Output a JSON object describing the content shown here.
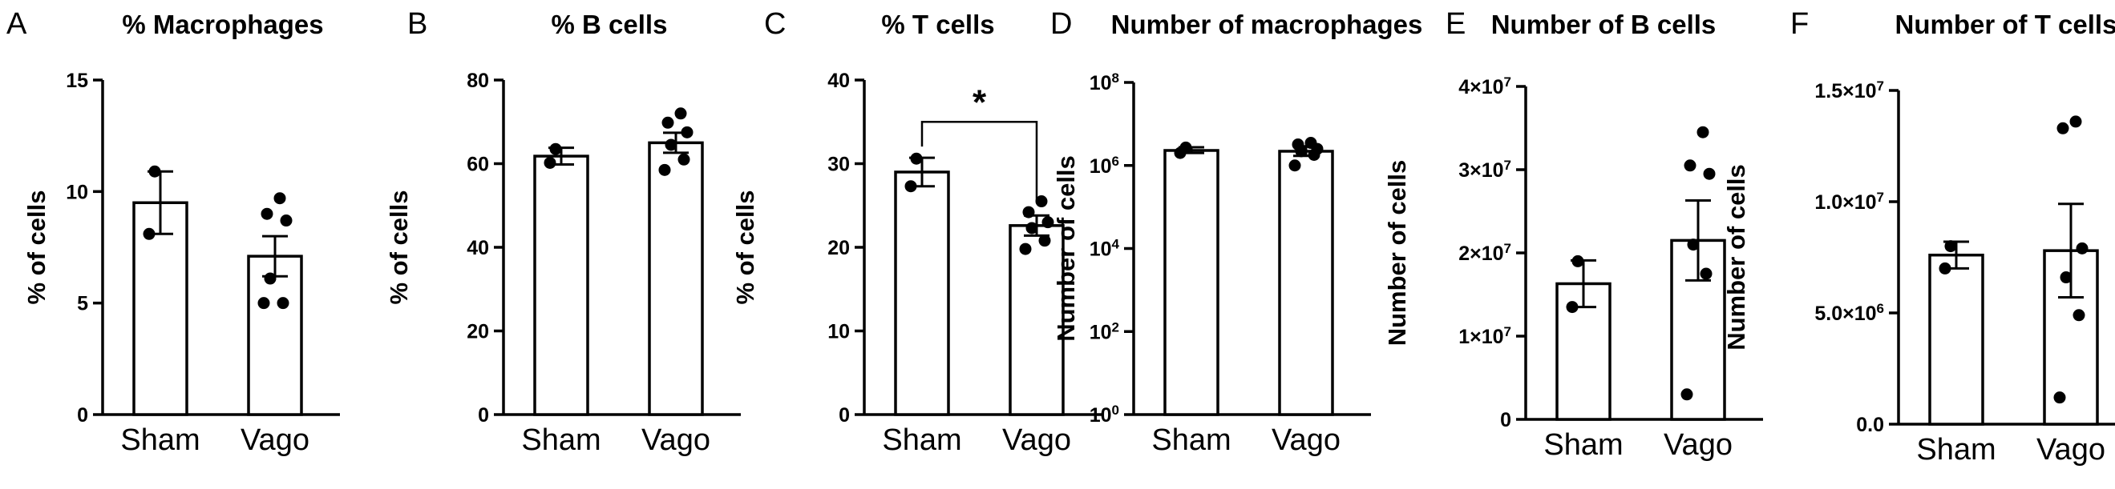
{
  "chart_data": [
    {
      "panel": "A",
      "type": "bar",
      "title": "% Macrophages",
      "ylabel": "% of cells",
      "scale": "linear",
      "ylim": [
        0,
        15
      ],
      "yticks": [
        {
          "v": 0,
          "label": "0"
        },
        {
          "v": 5,
          "label": "5"
        },
        {
          "v": 10,
          "label": "10"
        },
        {
          "v": 15,
          "label": "15"
        }
      ],
      "categories": [
        "Sham",
        "Vago"
      ],
      "bars": [
        {
          "category": "Sham",
          "mean": 9.5,
          "sem": 1.4,
          "points": [
            10.9,
            8.1
          ]
        },
        {
          "category": "Vago",
          "mean": 7.1,
          "sem": 0.9,
          "points": [
            9.7,
            9.0,
            8.7,
            6.1,
            5.0,
            5.0
          ]
        }
      ]
    },
    {
      "panel": "B",
      "type": "bar",
      "title": "% B cells",
      "ylabel": "% of cells",
      "scale": "linear",
      "ylim": [
        0,
        80
      ],
      "yticks": [
        {
          "v": 0,
          "label": "0"
        },
        {
          "v": 20,
          "label": "20"
        },
        {
          "v": 40,
          "label": "40"
        },
        {
          "v": 60,
          "label": "60"
        },
        {
          "v": 80,
          "label": "80"
        }
      ],
      "categories": [
        "Sham",
        "Vago"
      ],
      "bars": [
        {
          "category": "Sham",
          "mean": 61.8,
          "sem": 2.0,
          "points": [
            63.5,
            60.2
          ]
        },
        {
          "category": "Vago",
          "mean": 65.0,
          "sem": 2.4,
          "points": [
            72.0,
            69.8,
            67.5,
            64.5,
            61.0,
            58.5
          ]
        }
      ]
    },
    {
      "panel": "C",
      "type": "bar",
      "title": "% T cells",
      "ylabel": "% of cells",
      "scale": "linear",
      "ylim": [
        0,
        40
      ],
      "yticks": [
        {
          "v": 0,
          "label": "0"
        },
        {
          "v": 10,
          "label": "10"
        },
        {
          "v": 20,
          "label": "20"
        },
        {
          "v": 30,
          "label": "30"
        },
        {
          "v": 40,
          "label": "40"
        }
      ],
      "categories": [
        "Sham",
        "Vago"
      ],
      "bars": [
        {
          "category": "Sham",
          "mean": 29.0,
          "sem": 1.7,
          "points": [
            30.6,
            27.3
          ]
        },
        {
          "category": "Vago",
          "mean": 22.6,
          "sem": 1.2,
          "points": [
            25.5,
            24.2,
            23.0,
            22.3,
            20.8,
            19.8
          ]
        }
      ],
      "significance": {
        "label": "*",
        "between": [
          "Sham",
          "Vago"
        ],
        "y": 35
      }
    },
    {
      "panel": "D",
      "type": "bar",
      "title": "Number of macrophages",
      "ylabel": "Number of cells",
      "scale": "log",
      "ylim": [
        1,
        100000000
      ],
      "yticks": [
        {
          "v": 1,
          "label": "10",
          "exp": "0"
        },
        {
          "v": 100,
          "label": "10",
          "exp": "2"
        },
        {
          "v": 10000,
          "label": "10",
          "exp": "4"
        },
        {
          "v": 1000000,
          "label": "10",
          "exp": "6"
        },
        {
          "v": 100000000,
          "label": "10",
          "exp": "8"
        }
      ],
      "categories": [
        "Sham",
        "Vago"
      ],
      "bars": [
        {
          "category": "Sham",
          "mean": 2300000,
          "sem_low": 2000000,
          "sem_high": 2750000,
          "points": [
            2700000,
            2000000
          ]
        },
        {
          "category": "Vago",
          "mean": 2200000,
          "sem_low": 1700000,
          "sem_high": 2900000,
          "points": [
            3500000,
            3200000,
            2500000,
            2200000,
            1800000,
            1000000
          ]
        }
      ]
    },
    {
      "panel": "E",
      "type": "bar",
      "title": "Number of B cells",
      "ylabel": "Number of cells",
      "scale": "linear",
      "ylim": [
        0,
        40000000
      ],
      "yticks": [
        {
          "v": 0,
          "label": "0"
        },
        {
          "v": 10000000,
          "label": "1×10",
          "exp": "7"
        },
        {
          "v": 20000000,
          "label": "2×10",
          "exp": "7"
        },
        {
          "v": 30000000,
          "label": "3×10",
          "exp": "7"
        },
        {
          "v": 40000000,
          "label": "4×10",
          "exp": "7"
        }
      ],
      "categories": [
        "Sham",
        "Vago"
      ],
      "bars": [
        {
          "category": "Sham",
          "mean": 16300000,
          "sem": 2800000,
          "points": [
            19000000,
            13500000
          ]
        },
        {
          "category": "Vago",
          "mean": 21500000,
          "sem": 4800000,
          "points": [
            34500000,
            30500000,
            29500000,
            21000000,
            17500000,
            3000000
          ]
        }
      ]
    },
    {
      "panel": "F",
      "type": "bar",
      "title": "Number of T cells",
      "ylabel": "Number of cells",
      "scale": "linear",
      "ylim": [
        0,
        15000000
      ],
      "yticks": [
        {
          "v": 0,
          "label": "0.0"
        },
        {
          "v": 5000000,
          "label": "5.0×10",
          "exp": "6"
        },
        {
          "v": 10000000,
          "label": "1.0×10",
          "exp": "7"
        },
        {
          "v": 15000000,
          "label": "1.5×10",
          "exp": "7"
        }
      ],
      "categories": [
        "Sham",
        "Vago"
      ],
      "bars": [
        {
          "category": "Sham",
          "mean": 7600000,
          "sem": 600000,
          "points": [
            8000000,
            7000000
          ]
        },
        {
          "category": "Vago",
          "mean": 7800000,
          "sem": 2100000,
          "points": [
            13600000,
            13300000,
            7900000,
            6600000,
            4900000,
            1200000
          ]
        }
      ]
    }
  ]
}
